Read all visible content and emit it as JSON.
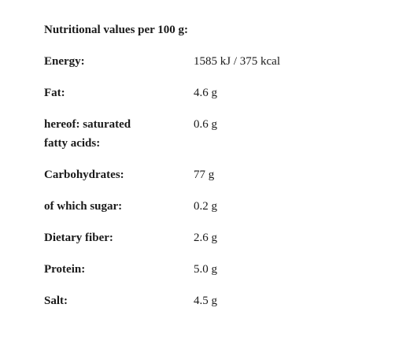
{
  "title": "Nutritional values per 100 g:",
  "table": {
    "rows": [
      [
        "Energy:",
        "1585 kJ / 375 kcal"
      ],
      [
        "Fat:",
        "4.6 g"
      ],
      [
        "hereof: saturated fatty acids:",
        "0.6 g"
      ],
      [
        "Carbohydrates:",
        "77 g"
      ],
      [
        "of which sugar:",
        "0.2 g"
      ],
      [
        "Dietary fiber:",
        "2.6 g"
      ],
      [
        "Protein:",
        "5.0 g"
      ],
      [
        "Salt:",
        "4.5 g"
      ]
    ]
  }
}
